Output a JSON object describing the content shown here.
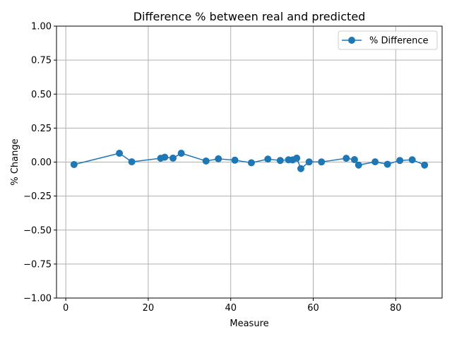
{
  "chart_data": {
    "type": "line",
    "title": "Difference % between real and predicted",
    "xlabel": "Measure",
    "ylabel": "% Change",
    "xlim": [
      -2.25,
      91.25
    ],
    "ylim": [
      -1.0,
      1.0
    ],
    "xticks": [
      0,
      20,
      40,
      60,
      80
    ],
    "xtick_labels": [
      "0",
      "20",
      "40",
      "60",
      "80"
    ],
    "yticks": [
      -1.0,
      -0.75,
      -0.5,
      -0.25,
      0.0,
      0.25,
      0.5,
      0.75,
      1.0
    ],
    "ytick_labels": [
      "−1.00",
      "−0.75",
      "−0.50",
      "−0.25",
      "0.00",
      "0.25",
      "0.50",
      "0.75",
      "1.00"
    ],
    "grid": true,
    "legend_position": "top-right",
    "series": [
      {
        "name": "% Difference",
        "color": "#1f77b4",
        "marker": "circle",
        "x": [
          2,
          13,
          16,
          23,
          24,
          26,
          28,
          34,
          37,
          41,
          45,
          49,
          52,
          54,
          55,
          56,
          57,
          59,
          62,
          68,
          70,
          71,
          75,
          78,
          81,
          84,
          87
        ],
        "y": [
          -0.018,
          0.065,
          0.002,
          0.028,
          0.036,
          0.029,
          0.065,
          0.008,
          0.024,
          0.014,
          -0.005,
          0.022,
          0.012,
          0.017,
          0.016,
          0.029,
          -0.048,
          0.001,
          0.001,
          0.028,
          0.018,
          -0.022,
          0.002,
          -0.016,
          0.012,
          0.017,
          -0.022
        ]
      }
    ]
  }
}
